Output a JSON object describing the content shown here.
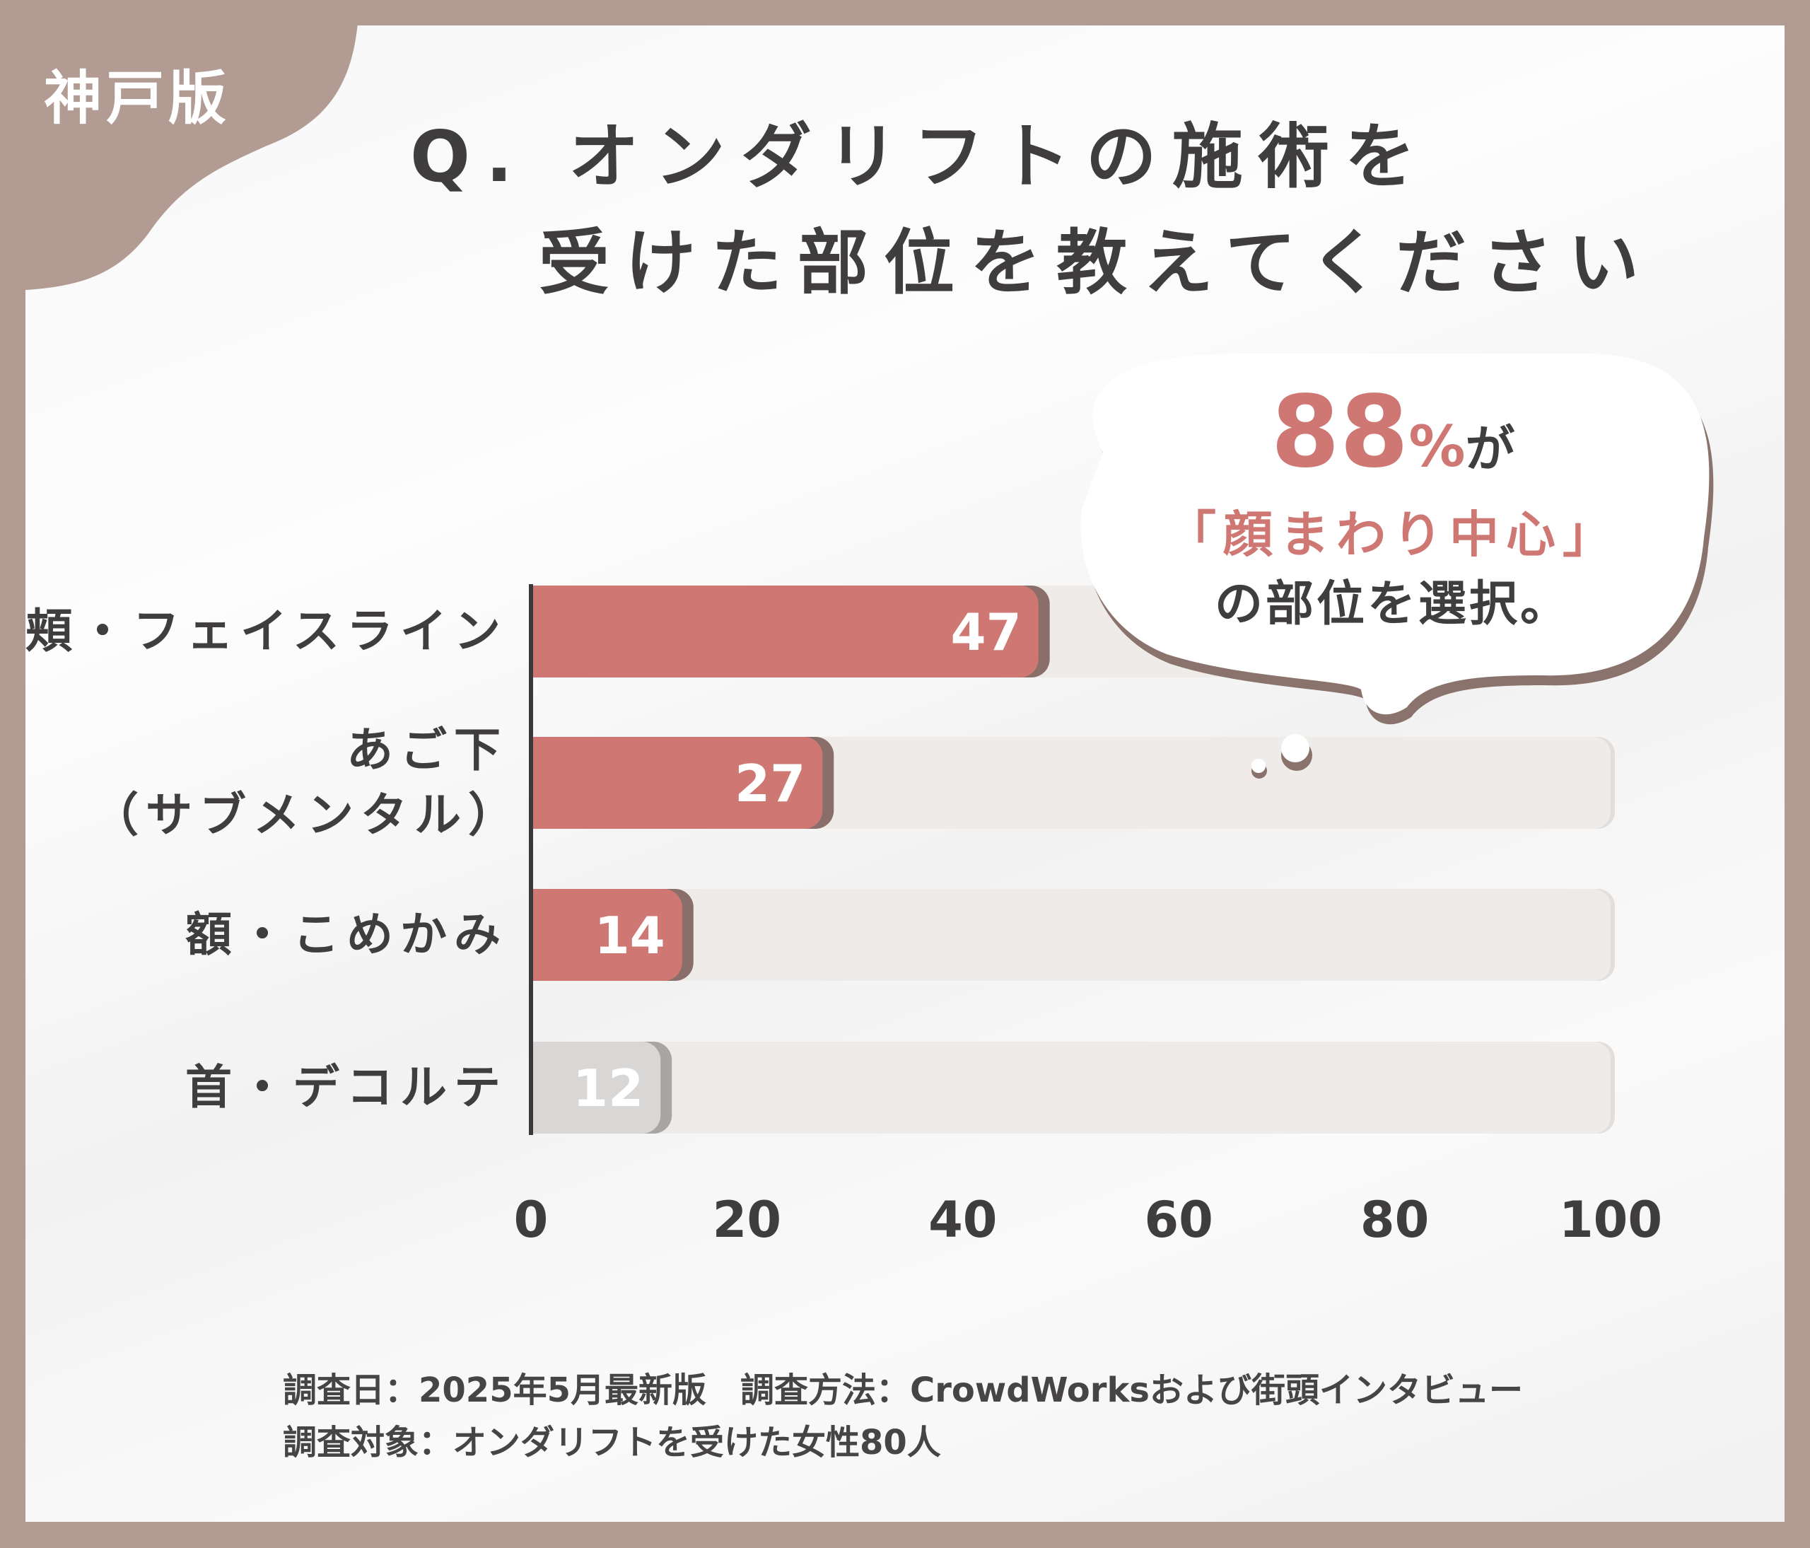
{
  "edition_badge": "神戸版",
  "title": {
    "line1": "Q. オンダリフトの施術を",
    "line2": "受けた部位を教えてください"
  },
  "callout": {
    "percent": "88",
    "percent_sign": "%",
    "suffix": "が",
    "highlight": "「顔まわり中心」",
    "text": "の部位を選択。"
  },
  "footer": {
    "line1": "調査日：2025年5月最新版　調査方法：CrowdWorksおよび街頭インタビュー",
    "line2": "調査対象：オンダリフトを受けた女性80人"
  },
  "colors": {
    "frame": "#b29b92",
    "bar": "#cf7873",
    "bar_shadow": "#8a6e69",
    "bar_muted": "#d9d6d6",
    "track": "#efebe9"
  },
  "chart_data": {
    "type": "bar",
    "orientation": "horizontal",
    "categories": [
      "頬・フェイスライン",
      "あご下\n（サブメンタル）",
      "額・こめかみ",
      "首・デコルテ"
    ],
    "category_lines": [
      [
        "頬・フェイスライン"
      ],
      [
        "あご下",
        "（サブメンタル）"
      ],
      [
        "額・こめかみ"
      ],
      [
        "首・デコルテ"
      ]
    ],
    "values": [
      47,
      27,
      14,
      12
    ],
    "data_labels": [
      "47",
      "27",
      "14",
      "12"
    ],
    "highlighted": [
      true,
      true,
      true,
      false
    ],
    "xlim": [
      0,
      100
    ],
    "xticks": [
      "0",
      "20",
      "40",
      "60",
      "80",
      "100"
    ],
    "grid": false
  }
}
